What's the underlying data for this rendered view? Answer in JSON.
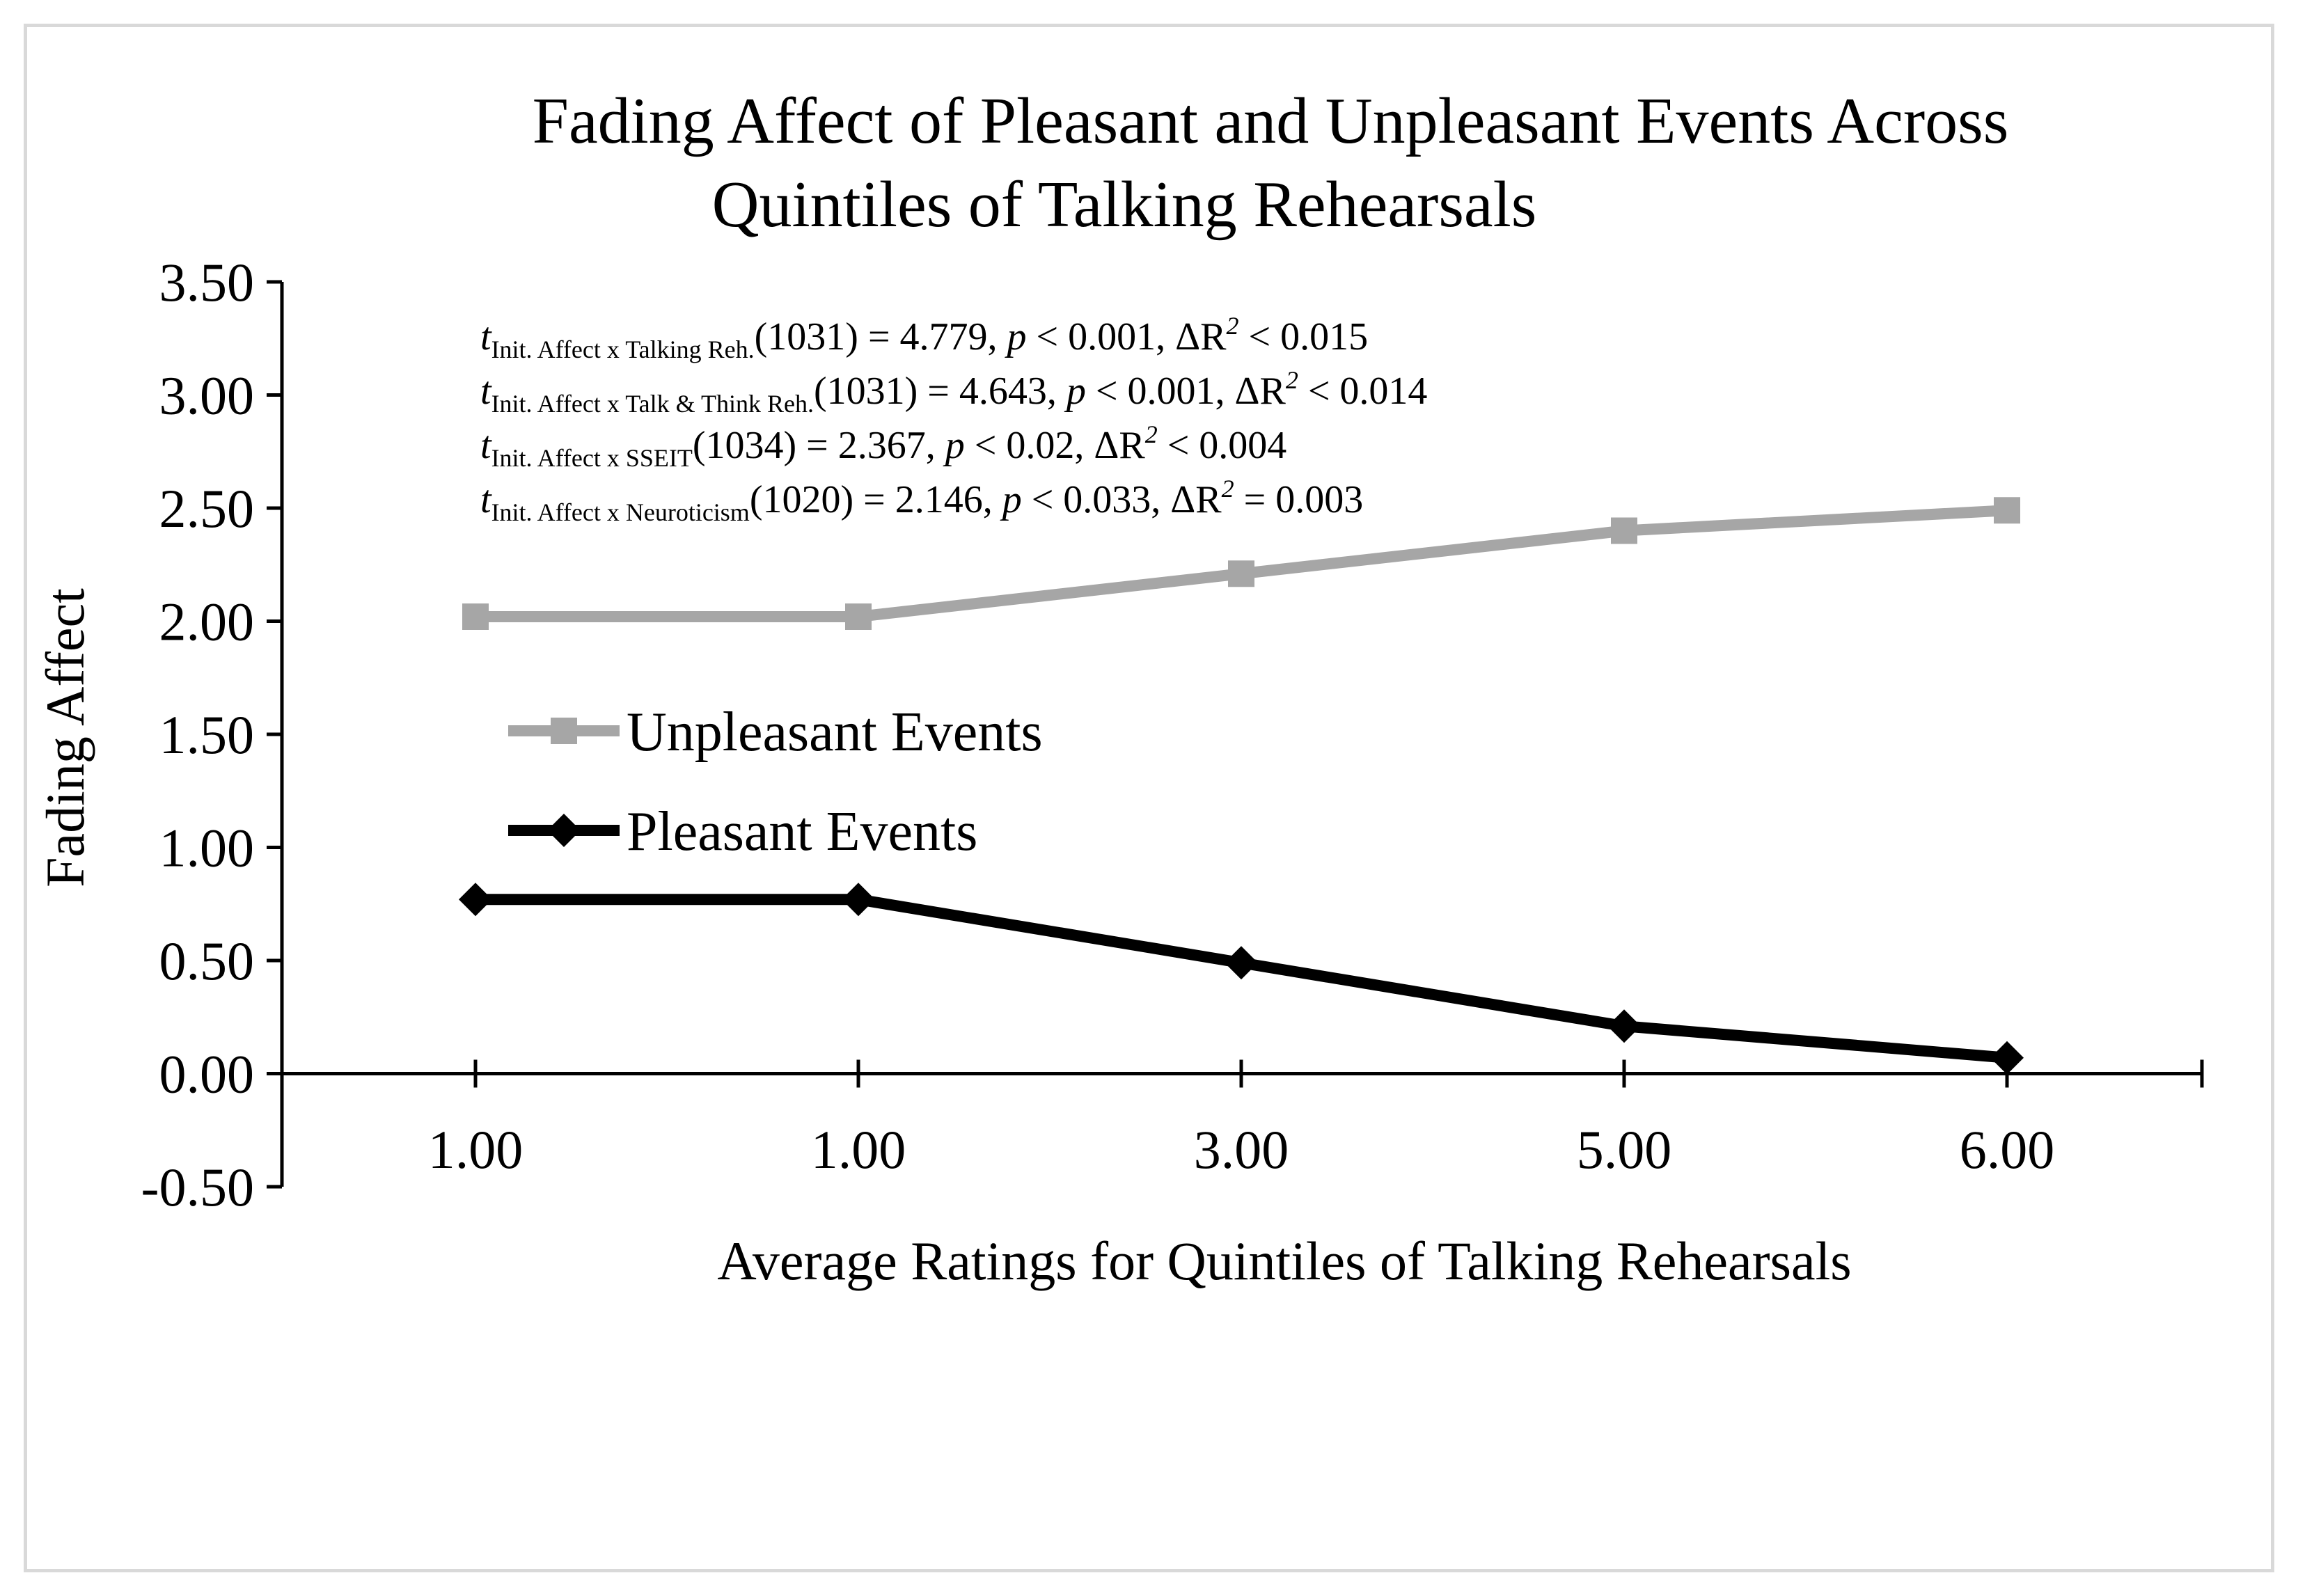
{
  "chart_data": {
    "type": "line",
    "title": [
      "Fading Affect of Pleasant and Unpleasant Events Across",
      "Quintiles of Talking Rehearsals"
    ],
    "xlabel": "Average Ratings for Quintiles of Talking Rehearsals",
    "ylabel": "Fading Affect",
    "categories": [
      "1.00",
      "1.00",
      "3.00",
      "5.00",
      "6.00"
    ],
    "yticks": [
      "3.50",
      "3.00",
      "2.50",
      "2.00",
      "1.50",
      "1.00",
      "0.50",
      "0.00",
      "-0.50"
    ],
    "ylim": [
      -0.5,
      3.5
    ],
    "grid": false,
    "legend_position": "left-middle",
    "series": [
      {
        "name": "Unpleasant Events",
        "values": [
          2.02,
          2.02,
          2.21,
          2.4,
          2.49
        ],
        "color": "#a6a6a6",
        "marker": "square"
      },
      {
        "name": "Pleasant Events",
        "values": [
          0.77,
          0.77,
          0.49,
          0.21,
          0.07
        ],
        "color": "#000000",
        "marker": "diamond"
      }
    ],
    "annotations": [
      {
        "t": "t",
        "sub": "Init. Affect x Talking Reh.",
        "rest_a": "(1031) = 4.779, ",
        "p": "p",
        "rest_b": " < 0.001, ΔR",
        "sup": "2",
        "rest_c": " < 0.015"
      },
      {
        "t": "t",
        "sub": "Init. Affect x Talk & Think Reh.",
        "rest_a": "(1031) = 4.643, ",
        "p": "p",
        "rest_b": " < 0.001, ΔR",
        "sup": "2",
        "rest_c": " < 0.014"
      },
      {
        "t": "t",
        "sub": "Init. Affect x SSEIT",
        "rest_a": "(1034) = 2.367, ",
        "p": "p",
        "rest_b": " < 0.02, ΔR",
        "sup": "2",
        "rest_c": " < 0.004"
      },
      {
        "t": "t",
        "sub": "Init. Affect x Neuroticism",
        "rest_a": "(1020) = 2.146, ",
        "p": "p",
        "rest_b": " < 0.033, ΔR",
        "sup": "2",
        "rest_c": " = 0.003"
      }
    ]
  }
}
